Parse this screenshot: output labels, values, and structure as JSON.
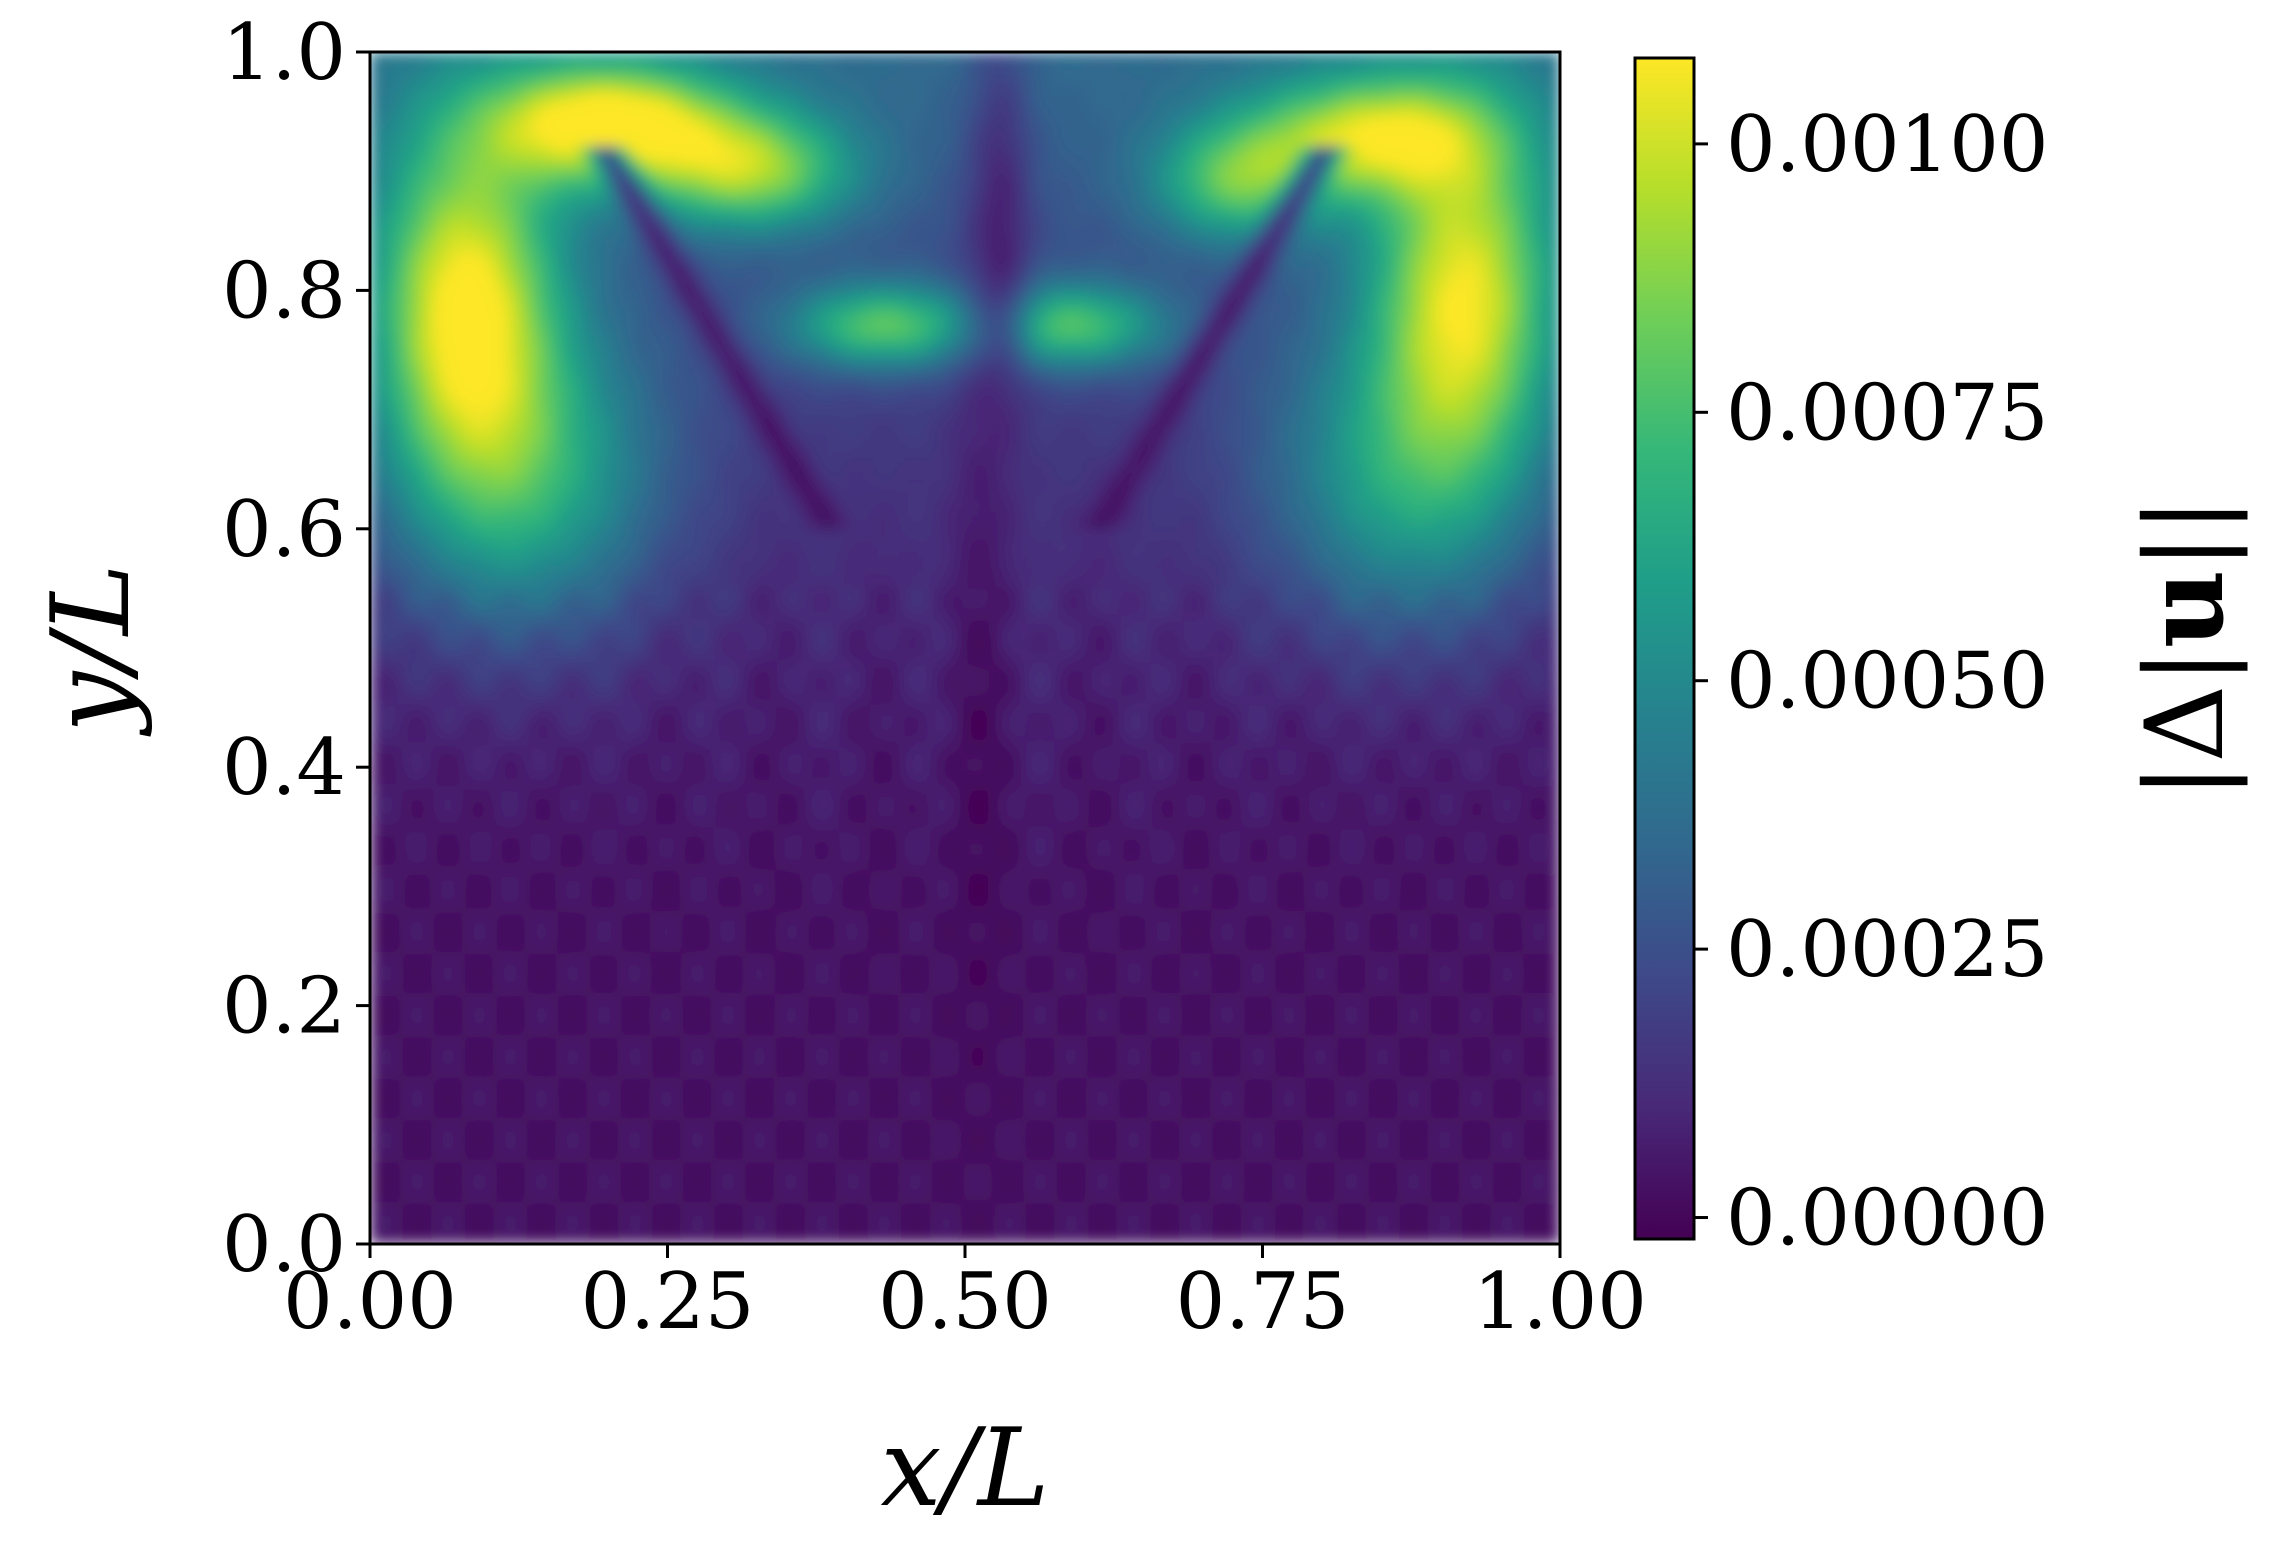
{
  "chart_data": {
    "type": "heatmap",
    "title": "",
    "xlabel": "x/L",
    "ylabel": "y/L",
    "xlim": [
      0.0,
      1.0
    ],
    "ylim": [
      0.0,
      1.0
    ],
    "x_ticks": [
      "0.00",
      "0.25",
      "0.50",
      "0.75",
      "1.00"
    ],
    "y_ticks": [
      "0.0",
      "0.2",
      "0.4",
      "0.6",
      "0.8",
      "1.0"
    ],
    "x_tick_values": [
      0.0,
      0.25,
      0.5,
      0.75,
      1.0
    ],
    "y_tick_values": [
      0.0,
      0.2,
      0.4,
      0.6,
      0.8,
      1.0
    ],
    "colormap": "viridis",
    "colorbar": {
      "label_parts": [
        "|Δ|",
        "u",
        "||"
      ],
      "range": [
        -2e-05,
        0.00108
      ],
      "ticks": [
        "0.00000",
        "0.00025",
        "0.00050",
        "0.00075",
        "0.00100"
      ],
      "tick_values": [
        0.0,
        0.00025,
        0.0005,
        0.00075,
        0.001
      ]
    },
    "features": [
      {
        "x": 0.08,
        "y": 0.8,
        "value": 0.00104
      },
      {
        "x": 0.92,
        "y": 0.8,
        "value": 0.00098
      },
      {
        "x": 0.18,
        "y": 0.95,
        "value": 0.00105
      },
      {
        "x": 0.85,
        "y": 0.94,
        "value": 0.00095
      },
      {
        "x": 0.44,
        "y": 0.77,
        "value": 0.0008
      },
      {
        "x": 0.58,
        "y": 0.77,
        "value": 0.00078
      },
      {
        "x": 0.15,
        "y": 0.62,
        "value": 0.00075
      },
      {
        "x": 0.85,
        "y": 0.62,
        "value": 0.00072
      },
      {
        "x": 0.28,
        "y": 0.88,
        "value": 0.0007
      },
      {
        "x": 0.75,
        "y": 0.88,
        "value": 0.00066
      },
      {
        "x": 0.5,
        "y": 0.5,
        "value": 0.0002
      },
      {
        "x": 0.3,
        "y": 0.2,
        "value": 4e-05
      },
      {
        "x": 0.7,
        "y": 0.2,
        "value": 4e-05
      }
    ]
  }
}
